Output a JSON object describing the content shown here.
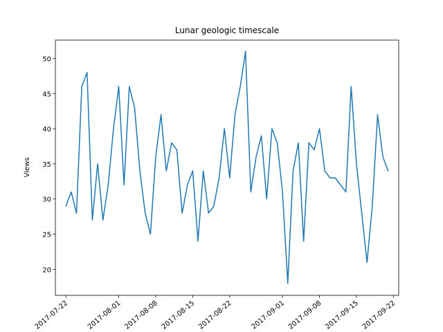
{
  "chart_data": {
    "type": "line",
    "title": "Lunar geologic timescale",
    "xlabel": "",
    "ylabel": "Views",
    "x_start": "2017-07-22",
    "x_ticks": [
      "2017-07-22",
      "2017-08-01",
      "2017-08-08",
      "2017-08-15",
      "2017-08-22",
      "2017-09-01",
      "2017-09-08",
      "2017-09-15",
      "2017-09-22"
    ],
    "y_ticks": [
      20,
      25,
      30,
      35,
      40,
      45,
      50
    ],
    "xlim": [
      "2017-07-20",
      "2017-09-23"
    ],
    "ylim": [
      16.3,
      52.6
    ],
    "grid": false,
    "series": [
      {
        "name": "",
        "color": "#1f77b4",
        "x": [
          "2017-07-22",
          "2017-07-23",
          "2017-07-24",
          "2017-07-25",
          "2017-07-26",
          "2017-07-27",
          "2017-07-28",
          "2017-07-29",
          "2017-07-30",
          "2017-07-31",
          "2017-08-01",
          "2017-08-02",
          "2017-08-03",
          "2017-08-04",
          "2017-08-05",
          "2017-08-06",
          "2017-08-07",
          "2017-08-08",
          "2017-08-09",
          "2017-08-10",
          "2017-08-11",
          "2017-08-12",
          "2017-08-13",
          "2017-08-14",
          "2017-08-15",
          "2017-08-16",
          "2017-08-17",
          "2017-08-18",
          "2017-08-19",
          "2017-08-20",
          "2017-08-21",
          "2017-08-22",
          "2017-08-23",
          "2017-08-24",
          "2017-08-25",
          "2017-08-26",
          "2017-08-27",
          "2017-08-28",
          "2017-08-29",
          "2017-08-30",
          "2017-08-31",
          "2017-09-01",
          "2017-09-02",
          "2017-09-03",
          "2017-09-04",
          "2017-09-05",
          "2017-09-06",
          "2017-09-07",
          "2017-09-08",
          "2017-09-09",
          "2017-09-10",
          "2017-09-11",
          "2017-09-12",
          "2017-09-13",
          "2017-09-14",
          "2017-09-15",
          "2017-09-16",
          "2017-09-17",
          "2017-09-18",
          "2017-09-19",
          "2017-09-20",
          "2017-09-21"
        ],
        "values": [
          29,
          31,
          28,
          46,
          48,
          27,
          35,
          27,
          32,
          40,
          46,
          32,
          46,
          43,
          34,
          28,
          25,
          36,
          42,
          34,
          38,
          37,
          28,
          32,
          34,
          24,
          34,
          28,
          29,
          33,
          40,
          33,
          42,
          46,
          51,
          31,
          36,
          39,
          30,
          40,
          38,
          31,
          18,
          34,
          38,
          24,
          38,
          37,
          40,
          34,
          33,
          33,
          32,
          31,
          46,
          35,
          28,
          21,
          29,
          42,
          36,
          34
        ]
      }
    ]
  }
}
